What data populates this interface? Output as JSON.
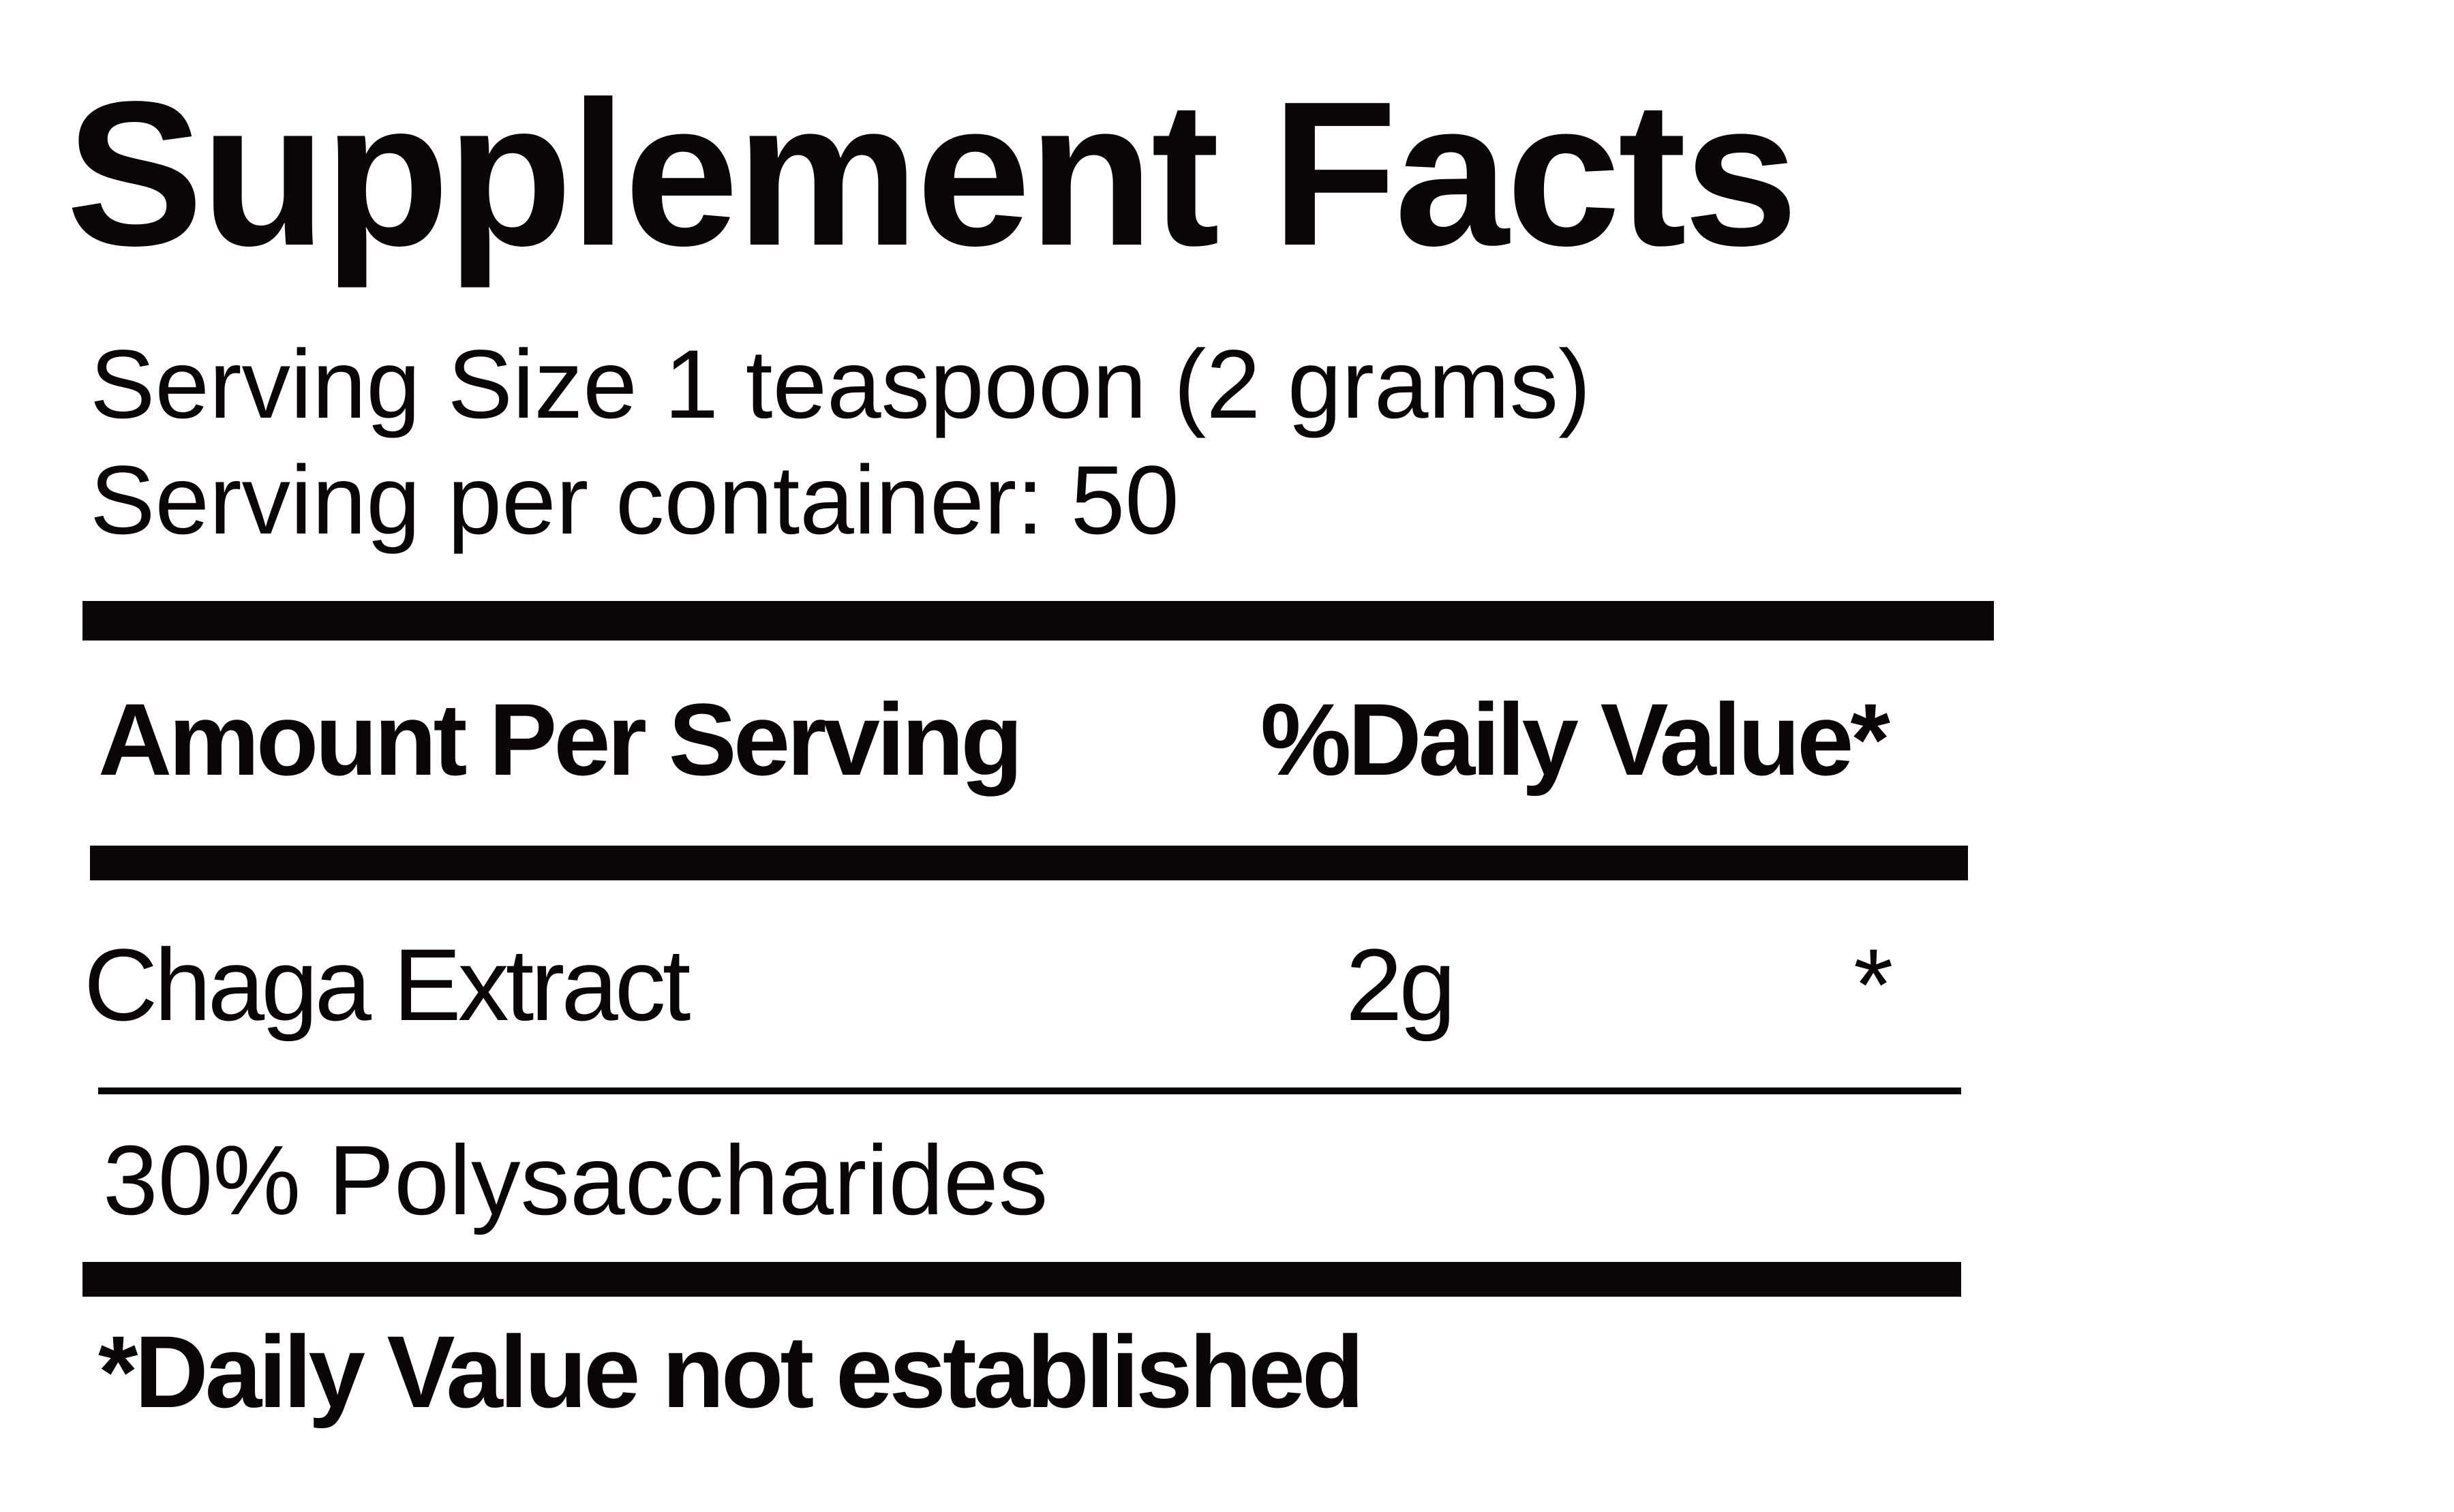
{
  "title": "Supplement Facts",
  "serving_size": "Serving Size 1 teaspoon (2 grams)",
  "servings_per_container": "Serving per container: 50",
  "header": {
    "amount": "Amount Per Serving",
    "daily_value": "%Daily Value*"
  },
  "ingredients": [
    {
      "name": "Chaga Extract",
      "amount": "2g",
      "daily_value": "*"
    },
    {
      "name": "30% Polysaccharides"
    }
  ],
  "footnote": "*Daily Value not established",
  "colors": {
    "text": "#0a0606",
    "background": "#ffffff"
  }
}
